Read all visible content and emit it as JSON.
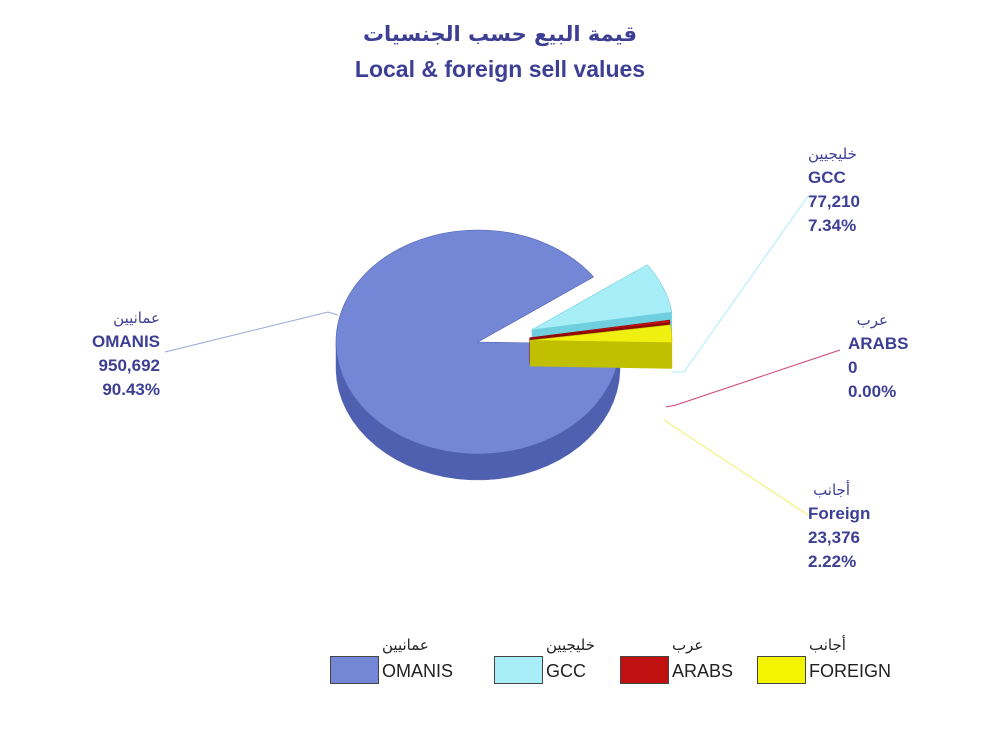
{
  "chart_data": {
    "type": "pie",
    "title_ar": "قيمة البيع حسب الجنسيات",
    "title": "Local & foreign sell values",
    "slices": [
      {
        "name_ar": "عمانيين",
        "name": "OMANIS",
        "value": "950,692",
        "value_num": 950692,
        "percent": "90.43%",
        "color": "#7486d6",
        "side": "#5060b0"
      },
      {
        "name_ar": "خليجيين",
        "name": "GCC",
        "value": "77,210",
        "value_num": 77210,
        "percent": "7.34%",
        "color": "#a8eef8",
        "side": "#6fcfdf"
      },
      {
        "name_ar": "عرب",
        "name": "ARABS",
        "value": "0",
        "value_num": 0,
        "percent": "0.00%",
        "color": "#d01010",
        "side": "#900808"
      },
      {
        "name_ar": "أجانب",
        "name": "Foreign",
        "value": "23,376",
        "value_num": 23376,
        "percent": "2.22%",
        "color": "#f0f010",
        "side": "#c0c000"
      }
    ],
    "legend": [
      {
        "ar": "عمانيين",
        "en": "OMANIS",
        "color": "#7486d6"
      },
      {
        "ar": "خليجيين",
        "en": "GCC",
        "color": "#a8eef8"
      },
      {
        "ar": "عرب",
        "en": "ARABS",
        "color": "#c01010"
      },
      {
        "ar": "أجانب",
        "en": "FOREIGN",
        "color": "#f4f400"
      }
    ],
    "legend_placement": "bottom",
    "leader_colors": {
      "omanis": "#9aa6dc",
      "gcc": "#a8eef8",
      "arabs": "#d04070",
      "foreign": "#f0f060"
    }
  }
}
